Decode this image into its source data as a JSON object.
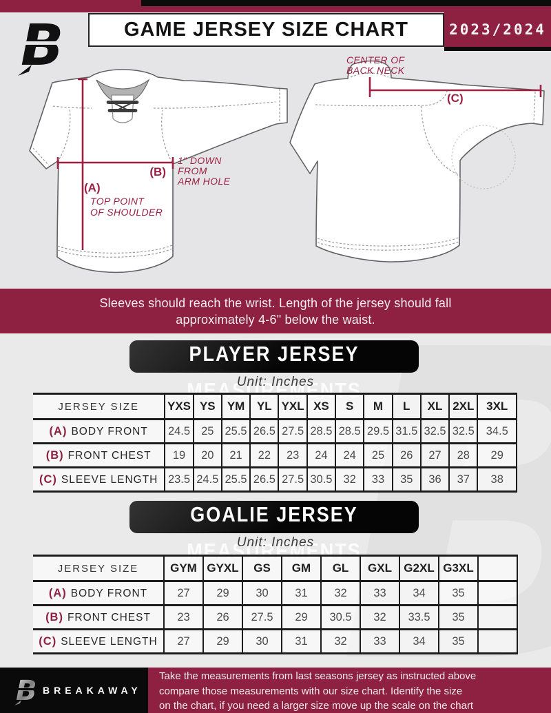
{
  "header": {
    "title": "GAME JERSEY SIZE CHART",
    "year": "2023/2024"
  },
  "diagram": {
    "front": {
      "label_a": "(A)",
      "note_a": [
        "TOP POINT",
        "OF SHOULDER"
      ],
      "label_b": "(B)",
      "note_b": [
        "1\" DOWN",
        "FROM",
        "ARM HOLE"
      ]
    },
    "back": {
      "note_c": [
        "CENTER OF",
        "BACK NECK"
      ],
      "label_c": "(C)"
    }
  },
  "mid_banner": {
    "line1": "Sleeves should reach the wrist. Length of the jersey should fall",
    "line2": "approximately 4-6\" below the waist."
  },
  "player_section": {
    "title": "PLAYER JERSEY MEASUREMENTS",
    "unit": "Unit: Inches",
    "table": {
      "col_header": "JERSEY SIZE",
      "sizes": [
        "YXS",
        "YS",
        "YM",
        "YL",
        "YXL",
        "XS",
        "S",
        "M",
        "L",
        "XL",
        "2XL",
        "3XL"
      ],
      "rows": [
        {
          "key": "(A)",
          "name": "BODY FRONT",
          "values": [
            "24.5",
            "25",
            "25.5",
            "26.5",
            "27.5",
            "28.5",
            "28.5",
            "29.5",
            "31.5",
            "32.5",
            "32.5",
            "34.5"
          ]
        },
        {
          "key": "(B)",
          "name": "FRONT CHEST",
          "values": [
            "19",
            "20",
            "21",
            "22",
            "23",
            "24",
            "24",
            "25",
            "26",
            "27",
            "28",
            "29"
          ]
        },
        {
          "key": "(C)",
          "name": "SLEEVE LENGTH",
          "values": [
            "23.5",
            "24.5",
            "25.5",
            "26.5",
            "27.5",
            "30.5",
            "32",
            "33",
            "35",
            "36",
            "37",
            "38"
          ]
        }
      ]
    }
  },
  "goalie_section": {
    "title": "GOALIE JERSEY MEASUREMENTS",
    "unit": "Unit: Inches",
    "table": {
      "col_header": "JERSEY SIZE",
      "sizes": [
        "GYM",
        "GYXL",
        "GS",
        "GM",
        "GL",
        "GXL",
        "G2XL",
        "G3XL",
        ""
      ],
      "rows": [
        {
          "key": "(A)",
          "name": "BODY FRONT",
          "values": [
            "27",
            "29",
            "30",
            "31",
            "32",
            "33",
            "34",
            "35",
            ""
          ]
        },
        {
          "key": "(B)",
          "name": "FRONT CHEST",
          "values": [
            "23",
            "26",
            "27.5",
            "29",
            "30.5",
            "32",
            "33.5",
            "35",
            ""
          ]
        },
        {
          "key": "(C)",
          "name": "SLEEVE LENGTH",
          "values": [
            "27",
            "29",
            "30",
            "31",
            "32",
            "33",
            "34",
            "35",
            ""
          ]
        }
      ]
    }
  },
  "footer": {
    "brand": "BREAKAWAY",
    "lines": [
      "Take the measurements from last seasons jersey as instructed above",
      "compare those measurements  with our size chart. Identify the size",
      "on the chart, if you need a larger size move up the scale on the chart"
    ]
  },
  "colors": {
    "maroon": "#8e2041",
    "annotation": "#9c2143",
    "black": "#0c0c0c",
    "bg_gray": "#e5e5e7"
  }
}
